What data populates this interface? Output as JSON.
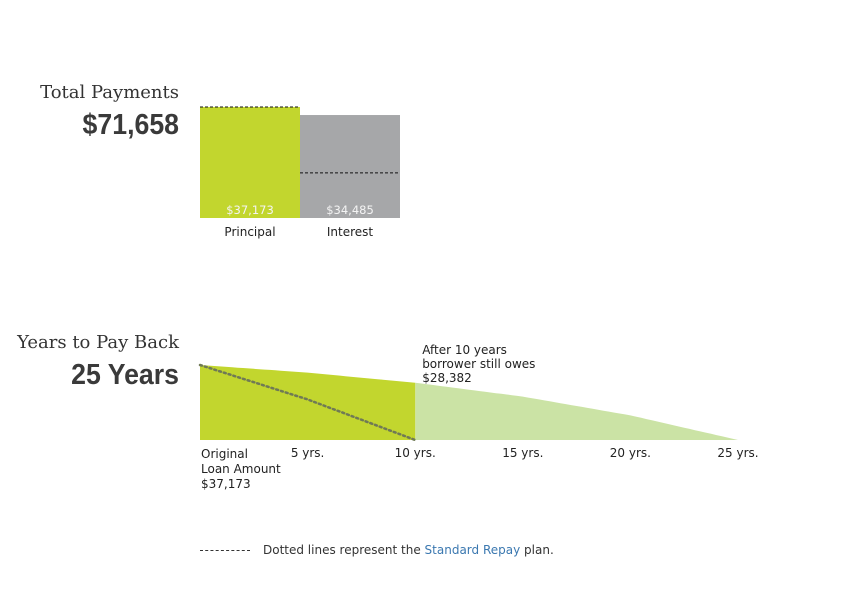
{
  "total_payments": {
    "title": "Total Payments",
    "value": "$71,658"
  },
  "years_to_pay": {
    "title": "Years to Pay Back",
    "value": "25 Years"
  },
  "legend": {
    "prefix": "Dotted lines represent the",
    "link": "Standard Repay",
    "suffix": "plan."
  },
  "colors": {
    "principal": "#c2d62e",
    "interest": "#a6a7a9",
    "remaining": "#cbe3a5",
    "link": "#3b78b0"
  },
  "chart_data": [
    {
      "type": "bar",
      "categories": [
        "Principal",
        "Interest"
      ],
      "values": [
        37173,
        34485
      ],
      "value_labels": [
        "$37,173",
        "$34,485"
      ],
      "standard_repay_values": [
        37173,
        15100
      ],
      "standard_repay": "dotted line"
    },
    {
      "type": "area",
      "x": [
        0,
        5,
        10,
        15,
        20,
        25
      ],
      "y": [
        37173,
        33400,
        28382,
        21500,
        12200,
        0
      ],
      "xlim": [
        0,
        25
      ],
      "ylim": [
        0,
        37173
      ],
      "tick_labels": [
        "5 yrs.",
        "10 yrs.",
        "15 yrs.",
        "20 yrs.",
        "25 yrs."
      ],
      "start_label": [
        "Original",
        "Loan Amount",
        "$37,173"
      ],
      "annotation": [
        "After 10 years",
        "borrower still owes",
        "$28,382"
      ],
      "annotation_x": 10,
      "standard_repay": {
        "style": "dotted line",
        "x": [
          0,
          5,
          10
        ],
        "y": [
          37173,
          20100,
          0
        ]
      }
    }
  ]
}
